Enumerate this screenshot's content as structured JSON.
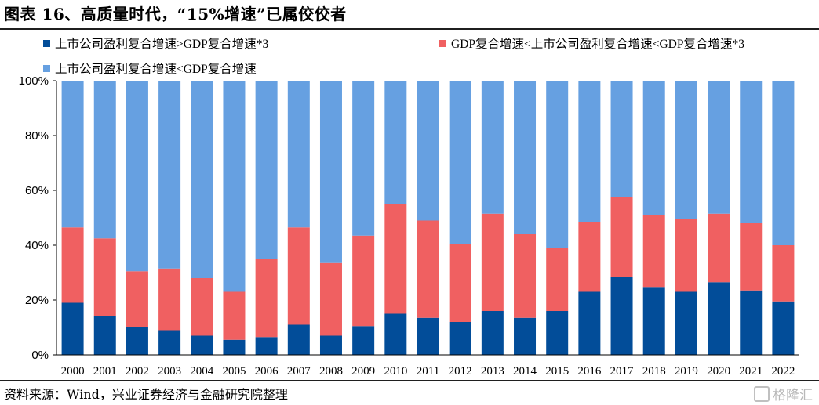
{
  "header": {
    "title": "图表 16、高质量时代，“15%增速”已属佼佼者"
  },
  "footer": {
    "source": "资料来源：Wind，兴业证券经济与金融研究院整理",
    "watermark": "格隆汇"
  },
  "chart_data": {
    "type": "bar",
    "stacked": true,
    "title": "",
    "xlabel": "",
    "ylabel": "",
    "ylim": [
      0,
      100
    ],
    "y_unit": "%",
    "yticks": [
      "0%",
      "20%",
      "40%",
      "60%",
      "80%",
      "100%"
    ],
    "grid": false,
    "legend_position": "top",
    "categories": [
      "2000",
      "2001",
      "2002",
      "2003",
      "2004",
      "2005",
      "2006",
      "2007",
      "2008",
      "2009",
      "2010",
      "2011",
      "2012",
      "2013",
      "2014",
      "2015",
      "2016",
      "2017",
      "2018",
      "2019",
      "2020",
      "2021",
      "2022"
    ],
    "series": [
      {
        "name": "上市公司盈利复合增速>GDP复合增速*3",
        "color": "#024d99",
        "values": [
          19,
          14,
          10,
          9,
          7,
          5.5,
          6.5,
          11,
          7,
          10.5,
          15,
          13.5,
          12,
          16,
          13.5,
          16,
          23,
          28.5,
          24.5,
          23,
          26.5,
          23.5,
          19.5
        ]
      },
      {
        "name": "GDP复合增速<上市公司盈利复合增速<GDP复合增速*3",
        "color": "#f06061",
        "values": [
          27.5,
          28.5,
          20.5,
          22.5,
          21,
          17.5,
          28.5,
          35.5,
          26.5,
          33,
          40,
          35.5,
          28.5,
          35.5,
          30.5,
          23,
          25.5,
          29,
          26.5,
          26.5,
          25,
          24.5,
          20.5
        ]
      },
      {
        "name": "上市公司盈利复合增速<GDP复合增速",
        "color": "#66a0e1",
        "values": [
          53.5,
          57.5,
          69.5,
          68.5,
          72,
          77,
          65,
          53.5,
          66.5,
          56.5,
          45,
          51,
          59.5,
          48.5,
          56,
          61,
          51.5,
          42.5,
          49,
          50.5,
          48.5,
          52,
          60
        ]
      }
    ]
  }
}
